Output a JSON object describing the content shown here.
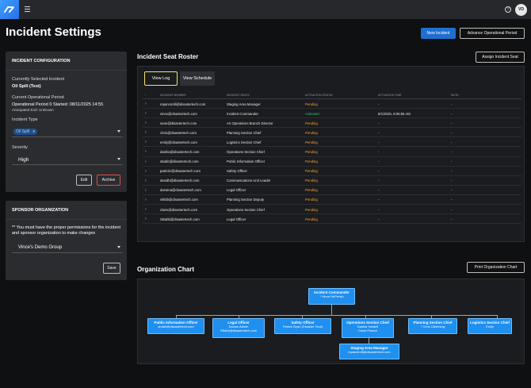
{
  "app": {
    "avatar_initials": "VD"
  },
  "page": {
    "title": "Incident Settings"
  },
  "header_buttons": {
    "new_incident": "New Incident",
    "advance_period": "Advance Operational Period"
  },
  "incident_config": {
    "header": "INCIDENT CONFIGURATION",
    "selected_label": "Currently Selected Incident",
    "selected_value": "Oil Spill (Test)",
    "period_label": "Current Operational Period",
    "period_value": "Operational Period 0 Started: 08/11/2025 14:55",
    "anticipated_end": "Anticipated End: Unknown",
    "type_label": "Incident Type",
    "type_chip": "Oil Spill",
    "severity_label": "Severity",
    "severity_value": "High",
    "edit_label": "Edit",
    "archive_label": "Archive"
  },
  "sponsor_org": {
    "header": "SPONSOR ORGANIZATION",
    "notice": "** You must have the proper permissions for the incident and sponsor organization to make changes",
    "selected": "Vince's Demo Group",
    "save_label": "Save"
  },
  "roster": {
    "title": "Incident Seat Roster",
    "assign_label": "Assign Incident Seat",
    "tabs": [
      "View Log",
      "View Schedule"
    ],
    "columns": [
      "INCIDENT MEMBER",
      "INCIDENT SEATS",
      "ACTIVATION STATUS",
      "ACTIVATION TIME",
      "NOTE"
    ],
    "rows": [
      {
        "member": "mpancirolli@disastertech.com",
        "seat": "Staging Area Manager",
        "status": "Pending",
        "time": "-",
        "note": "-"
      },
      {
        "member": "vince@disastertech.com",
        "seat": "Incident Commander",
        "status": "Activated",
        "time": "8/1/2025, 9:05:55 AM",
        "note": "-"
      },
      {
        "member": "sean@disastertech.com",
        "seat": "Air Operations Branch Director",
        "status": "Pending",
        "time": "-",
        "note": "-"
      },
      {
        "member": "chris@disastertech.com",
        "seat": "Planning Section Chief",
        "status": "Pending",
        "time": "-",
        "note": "-"
      },
      {
        "member": "emily@disastertech.com",
        "seat": "Logistics Section Chief",
        "status": "Pending",
        "time": "-",
        "note": "-"
      },
      {
        "member": "dashia@disastertech.com",
        "seat": "Operations Section Chief",
        "status": "Pending",
        "time": "-",
        "note": "-"
      },
      {
        "member": "sbabb@disastertech.com",
        "seat": "Public Information Officer",
        "status": "Pending",
        "time": "-",
        "note": "-"
      },
      {
        "member": "patrickr@disastertech.com",
        "seat": "Safety Officer",
        "status": "Pending",
        "time": "-",
        "note": "-"
      },
      {
        "member": "davidb@disastertech.com",
        "seat": "Communications Unit Leader",
        "status": "Pending",
        "time": "-",
        "note": "-"
      },
      {
        "member": "darwina@disastertech.com",
        "seat": "Legal Officer",
        "status": "Pending",
        "time": "-",
        "note": "-"
      },
      {
        "member": "nikkib@disastertech.com",
        "seat": "Planning Section Deputy",
        "status": "Pending",
        "time": "-",
        "note": "-"
      },
      {
        "member": "claire@disastertech.com",
        "seat": "Operations Section Chief",
        "status": "Pending",
        "time": "-",
        "note": "-"
      },
      {
        "member": "SBabb@disastertech.com",
        "seat": "Legal Officer",
        "status": "Pending",
        "time": "-",
        "note": "-"
      }
    ]
  },
  "org_chart": {
    "title": "Organization Chart",
    "print_label": "Print Organization Chart",
    "commander": {
      "title": "Incident Commander",
      "lines": [
        "* Vince DePersio"
      ]
    },
    "nodes": [
      {
        "title": "Public Information Officer",
        "lines": [
          "sbabb@disastertech.com"
        ]
      },
      {
        "title": "Legal Officer",
        "lines": [
          "Darwin Admin",
          "SBabb@disastertech.com"
        ]
      },
      {
        "title": "Safety Officer",
        "lines": [
          "Patrick Ryan (Disaster Tech)"
        ]
      },
      {
        "title": "Operations Section Chief",
        "lines": [
          "Dashia Yandell",
          "Claire Pearce"
        ]
      },
      {
        "title": "Planning Section Chief",
        "lines": [
          "* Chris Oikerberg"
        ]
      },
      {
        "title": "Logistics Section Chief",
        "lines": [
          "Emily"
        ]
      }
    ],
    "staging": {
      "title": "Staging Area Manager",
      "lines": [
        "mpancirolli@disastertech.com"
      ]
    }
  }
}
